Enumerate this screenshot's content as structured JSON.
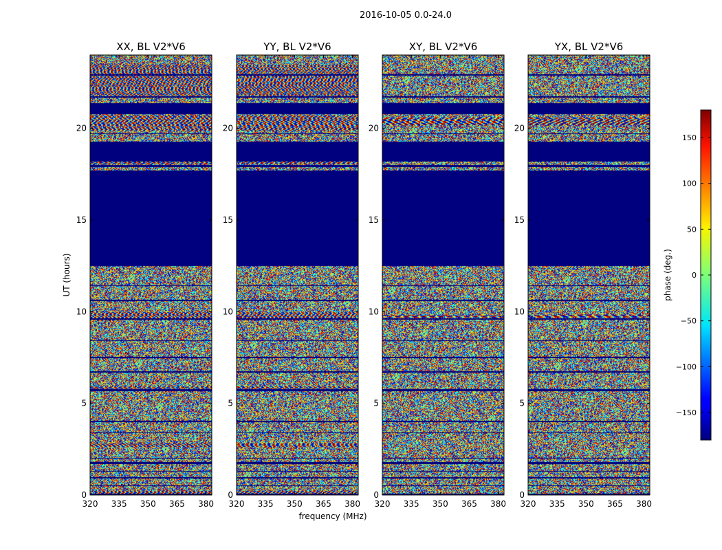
{
  "figure": {
    "suptitle": "2016-10-05 0.0-24.0"
  },
  "chart_data": {
    "type": "heatmap",
    "colormap": "jet",
    "xlabel": "frequency (MHz)",
    "ylabel": "UT (hours)",
    "xlim": [
      320,
      383
    ],
    "ylim": [
      0,
      24
    ],
    "xticks": [
      320,
      335,
      350,
      365,
      380
    ],
    "yticks": [
      0,
      5,
      10,
      15,
      20
    ],
    "colorbar": {
      "label": "phase (deg.)",
      "range": [
        -180,
        180
      ],
      "ticks": [
        150,
        100,
        50,
        0,
        -50,
        -100,
        -150
      ],
      "tick_labels": [
        "150",
        "100",
        "50",
        "0",
        "−50",
        "−100",
        "−150"
      ]
    },
    "flagged_value": -180,
    "flagged_ut_ranges": [
      [
        0.0,
        0.08
      ],
      [
        0.5,
        0.55
      ],
      [
        0.9,
        1.0
      ],
      [
        1.3,
        1.35
      ],
      [
        1.7,
        1.8
      ],
      [
        2.0,
        2.05
      ],
      [
        3.4,
        3.45
      ],
      [
        4.0,
        4.05
      ],
      [
        5.7,
        5.78
      ],
      [
        6.7,
        6.75
      ],
      [
        7.5,
        7.55
      ],
      [
        8.4,
        8.45
      ],
      [
        9.6,
        9.65
      ],
      [
        10.6,
        10.65
      ],
      [
        11.4,
        11.45
      ],
      [
        12.5,
        17.7
      ],
      [
        17.9,
        18.0
      ],
      [
        18.2,
        19.3
      ],
      [
        19.7,
        19.75
      ],
      [
        20.8,
        21.4
      ],
      [
        21.7,
        21.75
      ],
      [
        22.9,
        22.95
      ]
    ],
    "panels": [
      {
        "title": "XX, BL V2*V6",
        "fringe_bands": [
          [
            0.1,
            0.25,
            0.55
          ],
          [
            2.65,
            2.85,
            0.5
          ],
          [
            5.75,
            5.95,
            0.45
          ],
          [
            9.55,
            10.0,
            0.55
          ],
          [
            18.05,
            18.2,
            0.45
          ],
          [
            19.9,
            20.7,
            0.5
          ],
          [
            21.8,
            23.5,
            0.6
          ]
        ]
      },
      {
        "title": "YY, BL V2*V6",
        "fringe_bands": [
          [
            0.1,
            0.25,
            0.55
          ],
          [
            2.65,
            2.85,
            0.5
          ],
          [
            5.75,
            5.95,
            0.45
          ],
          [
            9.55,
            10.0,
            0.55
          ],
          [
            18.05,
            18.2,
            0.45
          ],
          [
            19.9,
            20.7,
            0.5
          ],
          [
            21.8,
            23.5,
            0.6
          ]
        ]
      },
      {
        "title": "XY, BL V2*V6",
        "fringe_bands": [
          [
            9.7,
            9.85,
            0.25
          ],
          [
            20.2,
            20.6,
            0.35
          ]
        ]
      },
      {
        "title": "YX, BL V2*V6",
        "fringe_bands": [
          [
            9.7,
            9.85,
            0.25
          ],
          [
            20.2,
            20.6,
            0.35
          ]
        ]
      }
    ]
  }
}
